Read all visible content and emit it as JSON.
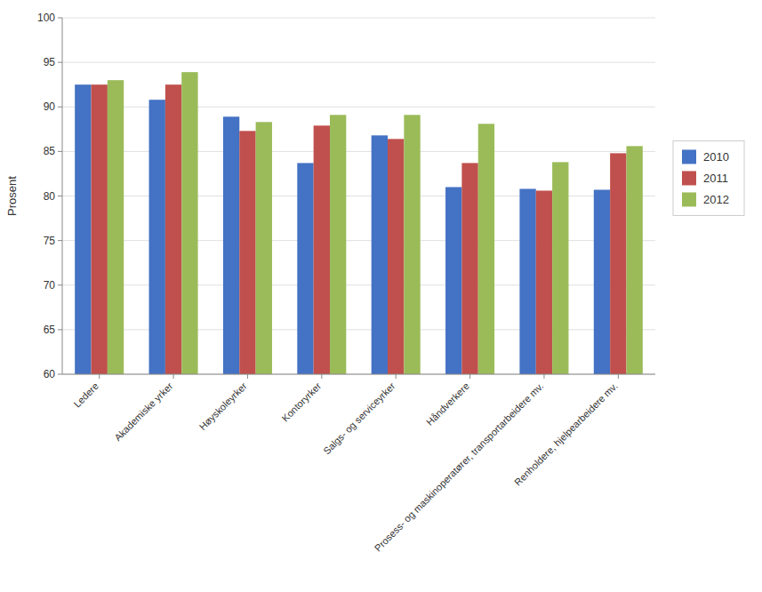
{
  "chart_data": {
    "type": "bar",
    "categories": [
      "Ledere",
      "Akademiske yrker",
      "Høyskoleyrker",
      "Kontoryrker",
      "Salgs- og serviceyrker",
      "Håndverkere",
      "Prosess- og maskinoperatører, transportarbeidere mv.",
      "Renholdere, hjelpearbeidere mv."
    ],
    "series": [
      {
        "name": "2010",
        "color": "#4472C4",
        "values": [
          92.5,
          90.8,
          88.9,
          83.7,
          86.8,
          81.0,
          80.8,
          80.7
        ]
      },
      {
        "name": "2011",
        "color": "#C0504D",
        "values": [
          92.5,
          92.5,
          87.3,
          87.9,
          86.4,
          83.7,
          80.6,
          84.8
        ]
      },
      {
        "name": "2012",
        "color": "#9BBB59",
        "values": [
          93.0,
          93.9,
          88.3,
          89.1,
          89.1,
          88.1,
          83.8,
          85.6
        ]
      }
    ],
    "ylabel": "Prosent",
    "ylim": [
      60,
      100
    ],
    "yticks": [
      60,
      65,
      70,
      75,
      80,
      85,
      90,
      95,
      100
    ],
    "grid": true,
    "legend": "right"
  }
}
